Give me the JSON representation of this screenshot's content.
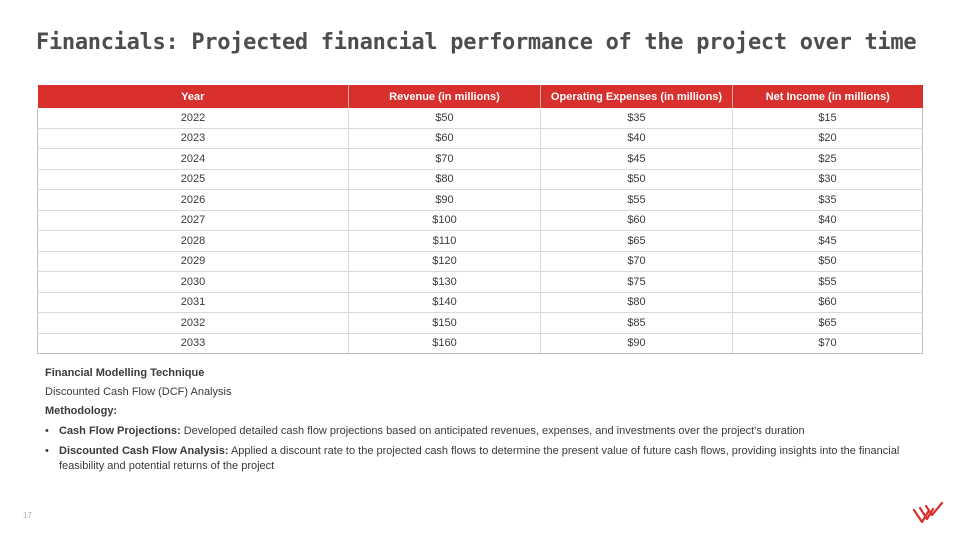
{
  "slide": {
    "title": "Financials: Projected financial performance of the project over time",
    "page_number": "17"
  },
  "table": {
    "headers": [
      "Year",
      "Revenue (in millions)",
      "Operating Expenses (in millions)",
      "Net Income (in millions)"
    ],
    "rows": [
      [
        "2022",
        "$50",
        "$35",
        "$15"
      ],
      [
        "2023",
        "$60",
        "$40",
        "$20"
      ],
      [
        "2024",
        "$70",
        "$45",
        "$25"
      ],
      [
        "2025",
        "$80",
        "$50",
        "$30"
      ],
      [
        "2026",
        "$90",
        "$55",
        "$35"
      ],
      [
        "2027",
        "$100",
        "$60",
        "$40"
      ],
      [
        "2028",
        "$110",
        "$65",
        "$45"
      ],
      [
        "2029",
        "$120",
        "$70",
        "$50"
      ],
      [
        "2030",
        "$130",
        "$75",
        "$55"
      ],
      [
        "2031",
        "$140",
        "$80",
        "$60"
      ],
      [
        "2032",
        "$150",
        "$85",
        "$65"
      ],
      [
        "2033",
        "$160",
        "$90",
        "$70"
      ]
    ]
  },
  "notes": {
    "heading": "Financial Modelling Technique",
    "technique": "Discounted Cash Flow (DCF) Analysis",
    "methodology_label": "Methodology:",
    "bullets": [
      {
        "term": "Cash Flow Projections:",
        "text": " Developed detailed cash flow projections based on anticipated revenues, expenses, and investments over the project's duration"
      },
      {
        "term": "Discounted Cash Flow Analysis:",
        "text": " Applied a discount rate to the projected cash flows to determine the present value of future cash flows, providing insights into the financial feasibility and potential returns of the project"
      }
    ]
  },
  "colors": {
    "accent": "#d8302c",
    "title": "#4d4d4d"
  },
  "logo": {
    "icon": "brand-logo-icon"
  }
}
